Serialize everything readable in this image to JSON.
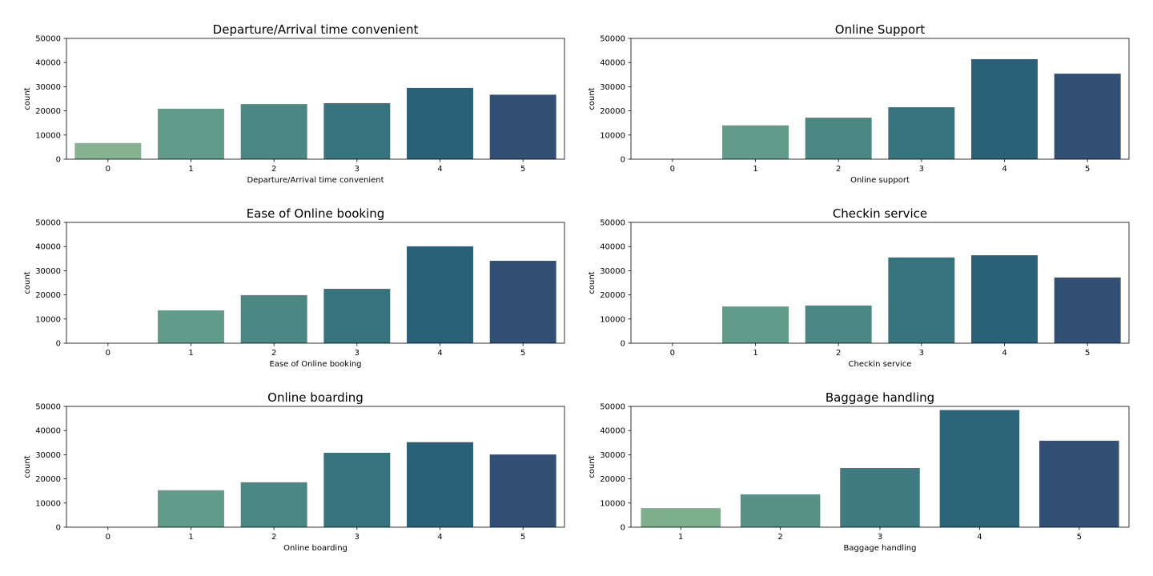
{
  "chart_data": [
    {
      "type": "bar",
      "title": "Departure/Arrival time convenient",
      "xlabel": "Departure/Arrival time convenient",
      "ylabel": "count",
      "categories": [
        "0",
        "1",
        "2",
        "3",
        "4",
        "5"
      ],
      "values": [
        6700,
        20900,
        22800,
        23200,
        29500,
        26700
      ],
      "ylim": [
        0,
        50000
      ],
      "yticks": [
        "0",
        "10000",
        "20000",
        "30000",
        "40000",
        "50000"
      ],
      "colors": [
        "#86b38f",
        "#619c8a",
        "#4b8884",
        "#36737c",
        "#2b6079",
        "#324f74"
      ]
    },
    {
      "type": "bar",
      "title": "Online Support",
      "xlabel": "Online support",
      "ylabel": "count",
      "categories": [
        "0",
        "1",
        "2",
        "3",
        "4",
        "5"
      ],
      "values": [
        0,
        14000,
        17200,
        21500,
        41400,
        35400
      ],
      "ylim": [
        0,
        50000
      ],
      "yticks": [
        "0",
        "10000",
        "20000",
        "30000",
        "40000",
        "50000"
      ],
      "colors": [
        "#86b38f",
        "#619c8a",
        "#4b8884",
        "#36737c",
        "#2b6079",
        "#324f74"
      ]
    },
    {
      "type": "bar",
      "title": "Ease of Online booking",
      "xlabel": "Ease of Online booking",
      "ylabel": "count",
      "categories": [
        "0",
        "1",
        "2",
        "3",
        "4",
        "5"
      ],
      "values": [
        0,
        13600,
        19900,
        22500,
        40100,
        34100
      ],
      "ylim": [
        0,
        50000
      ],
      "yticks": [
        "0",
        "10000",
        "20000",
        "30000",
        "40000",
        "50000"
      ],
      "colors": [
        "#86b38f",
        "#619c8a",
        "#4b8884",
        "#36737c",
        "#2b6079",
        "#324f74"
      ]
    },
    {
      "type": "bar",
      "title": "Checkin service",
      "xlabel": "Checkin service",
      "ylabel": "count",
      "categories": [
        "0",
        "1",
        "2",
        "3",
        "4",
        "5"
      ],
      "values": [
        0,
        15200,
        15600,
        35500,
        36400,
        27200
      ],
      "ylim": [
        0,
        50000
      ],
      "yticks": [
        "0",
        "10000",
        "20000",
        "30000",
        "40000",
        "50000"
      ],
      "colors": [
        "#86b38f",
        "#619c8a",
        "#4b8884",
        "#36737c",
        "#2b6079",
        "#324f74"
      ]
    },
    {
      "type": "bar",
      "title": "Online boarding",
      "xlabel": "Online boarding",
      "ylabel": "count",
      "categories": [
        "0",
        "1",
        "2",
        "3",
        "4",
        "5"
      ],
      "values": [
        0,
        15300,
        18600,
        30800,
        35200,
        30100
      ],
      "ylim": [
        0,
        50000
      ],
      "yticks": [
        "0",
        "10000",
        "20000",
        "30000",
        "40000",
        "50000"
      ],
      "colors": [
        "#86b38f",
        "#619c8a",
        "#4b8884",
        "#36737c",
        "#2b6079",
        "#324f74"
      ]
    },
    {
      "type": "bar",
      "title": "Baggage handling",
      "xlabel": "Baggage handling",
      "ylabel": "count",
      "categories": [
        "1",
        "2",
        "3",
        "4",
        "5"
      ],
      "values": [
        7900,
        13600,
        24500,
        48500,
        35800
      ],
      "ylim": [
        0,
        50000
      ],
      "yticks": [
        "0",
        "10000",
        "20000",
        "30000",
        "40000",
        "50000"
      ],
      "colors": [
        "#7daf8c",
        "#589286",
        "#3f7b80",
        "#2c6479",
        "#324f74"
      ]
    }
  ]
}
